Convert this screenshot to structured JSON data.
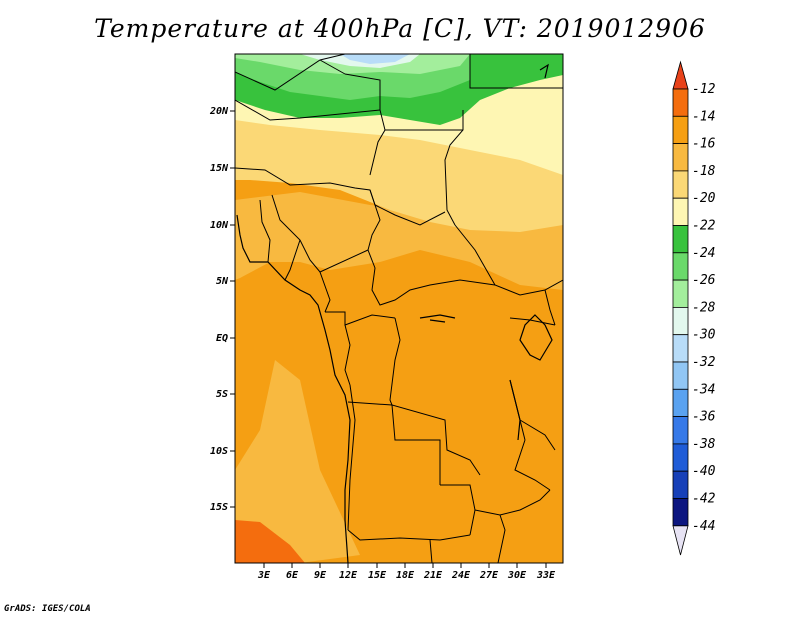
{
  "title": "Temperature at 400hPa [C], VT: 2019012906",
  "credit": "GrADS: IGES/COLA",
  "y_ticks": [
    "20N",
    "15N",
    "10N",
    "5N",
    "EQ",
    "5S",
    "10S",
    "15S"
  ],
  "x_ticks": [
    "3E",
    "6E",
    "9E",
    "12E",
    "15E",
    "18E",
    "21E",
    "24E",
    "27E",
    "30E",
    "33E"
  ],
  "colorbar": {
    "labels": [
      "-12",
      "-14",
      "-16",
      "-18",
      "-20",
      "-22",
      "-24",
      "-26",
      "-28",
      "-30",
      "-32",
      "-34",
      "-36",
      "-38",
      "-40",
      "-42",
      "-44"
    ],
    "colors": [
      "#e8421a",
      "#f46d0e",
      "#f59f13",
      "#f8b940",
      "#fbd876",
      "#fef6b3",
      "#38c23d",
      "#6ad96a",
      "#a3ee9c",
      "#e3f8ee",
      "#b8dcf8",
      "#91c6f4",
      "#5aa2f0",
      "#3679e8",
      "#1f5cd7",
      "#1740b8",
      "#0c1680",
      "#e7e3f4"
    ]
  },
  "colors": {
    "hot": "#f46d0e",
    "orange": "#f59f13",
    "light_orange": "#f8b940",
    "yellow_orange": "#fbd876",
    "pale_yellow": "#fef6b3",
    "green": "#38c23d",
    "light_green": "#6ad96a",
    "pale_green": "#a3ee9c",
    "pale_blue": "#b8dcf8",
    "boundary": "#000000"
  }
}
